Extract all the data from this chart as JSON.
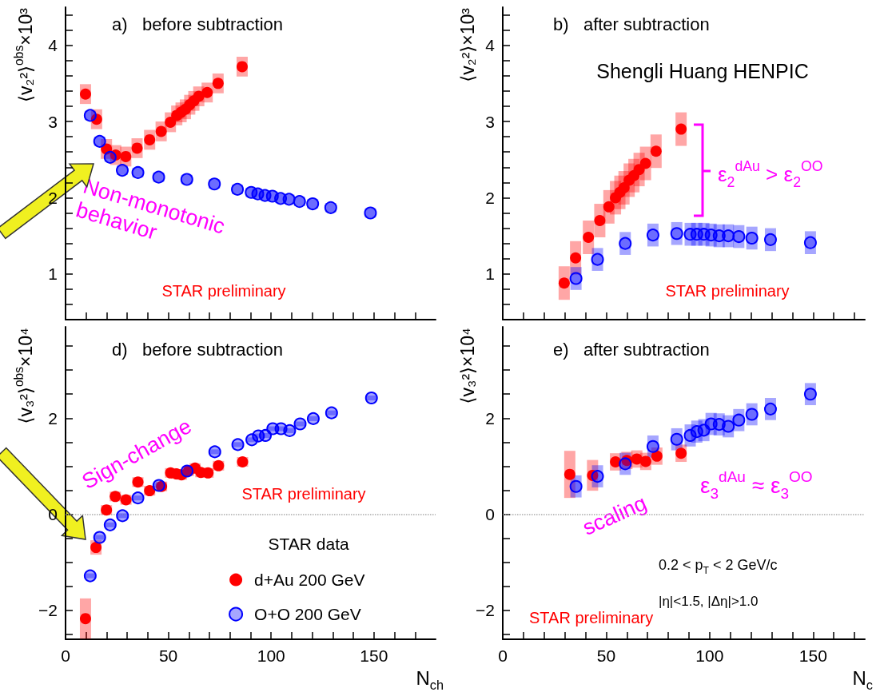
{
  "chart_data": [
    {
      "type": "scatter",
      "title": "a)   before subtraction",
      "ylabel": "⟨v₂²⟩$^{obs}$×10³",
      "xlim": [
        0,
        180
      ],
      "ylim": [
        0.4,
        4.5
      ],
      "tick_labels": "y",
      "marker": "circle",
      "xticks": [
        0,
        {
          "value": 10,
          "label": null
        },
        {
          "value": 20,
          "label": null
        },
        {
          "value": 30,
          "label": null
        },
        {
          "value": 40,
          "label": null
        },
        50,
        {
          "value": 60,
          "label": null
        },
        {
          "value": 70,
          "label": null
        },
        {
          "value": 80,
          "label": null
        },
        {
          "value": 90,
          "label": null
        },
        100,
        {
          "value": 110,
          "label": null
        },
        {
          "value": 120,
          "label": null
        },
        {
          "value": 130,
          "label": null
        },
        {
          "value": 140,
          "label": null
        },
        150,
        {
          "value": 160,
          "label": null
        },
        {
          "value": 170,
          "label": null
        }
      ],
      "yticks": [
        {
          "value": 0.4,
          "label": null
        },
        {
          "value": 0.6,
          "label": null
        },
        {
          "value": 0.8,
          "label": null
        },
        1,
        {
          "value": 1.2,
          "label": null
        },
        {
          "value": 1.4,
          "label": null
        },
        {
          "value": 1.6,
          "label": null
        },
        {
          "value": 1.8,
          "label": null
        },
        2,
        {
          "value": 2.2,
          "label": null
        },
        {
          "value": 2.4,
          "label": null
        },
        {
          "value": 2.6,
          "label": null
        },
        {
          "value": 2.8,
          "label": null
        },
        3,
        {
          "value": 3.2,
          "label": null
        },
        {
          "value": 3.4,
          "label": null
        },
        {
          "value": 3.6,
          "label": null
        },
        {
          "value": 3.8,
          "label": null
        },
        4,
        {
          "value": 4.2,
          "label": null
        },
        {
          "value": 4.4,
          "label": null
        }
      ],
      "annotations": [
        "Non-monotonic behavior",
        "STAR preliminary"
      ],
      "series": [
        {
          "color": "#ff0000",
          "x": [
            9.7,
            15.1,
            19.9,
            24.4,
            29.3,
            34.8,
            40.9,
            46.5,
            51,
            54.1,
            56.2,
            58.3,
            60.4,
            62.4,
            64.8,
            68.9,
            74.2,
            85.9
          ],
          "values": [
            3.36,
            3.03,
            2.64,
            2.56,
            2.54,
            2.65,
            2.76,
            2.87,
            2.99,
            3.08,
            3.12,
            3.16,
            3.22,
            3.27,
            3.33,
            3.38,
            3.5,
            3.72
          ],
          "errors": [
            0.13,
            0.13,
            0.13,
            0.13,
            0.13,
            0.13,
            0.13,
            0.13,
            0.13,
            0.13,
            0.13,
            0.13,
            0.13,
            0.13,
            0.13,
            0.13,
            0.13,
            0.13
          ]
        },
        {
          "color": "#0000ff",
          "x": [
            12,
            16.6,
            21.7,
            27.6,
            35.2,
            45.3,
            59,
            72.4,
            83.6,
            90.3,
            93.5,
            97,
            100.6,
            104.6,
            108.7,
            113.8,
            120.2,
            129,
            148.3
          ],
          "values": [
            3.08,
            2.74,
            2.53,
            2.36,
            2.33,
            2.27,
            2.24,
            2.18,
            2.11,
            2.07,
            2.05,
            2.03,
            2.02,
            1.99,
            1.98,
            1.95,
            1.92,
            1.87,
            1.8
          ],
          "errors": [
            0.06,
            0.06,
            0.06,
            0.06,
            0.06,
            0.06,
            0.06,
            0.06,
            0.06,
            0.06,
            0.06,
            0.06,
            0.06,
            0.06,
            0.06,
            0.06,
            0.06,
            0.06,
            0.06
          ]
        }
      ]
    },
    {
      "type": "scatter",
      "title": "b)   after subtraction",
      "ylabel": "⟨v₂²⟩×10³",
      "xlim": [
        0,
        175
      ],
      "ylim": [
        0.4,
        4.5
      ],
      "tick_labels": "y",
      "marker": "circle",
      "xticks": [
        0,
        {
          "value": 10,
          "label": null
        },
        {
          "value": 20,
          "label": null
        },
        {
          "value": 30,
          "label": null
        },
        {
          "value": 40,
          "label": null
        },
        50,
        {
          "value": 60,
          "label": null
        },
        {
          "value": 70,
          "label": null
        },
        {
          "value": 80,
          "label": null
        },
        {
          "value": 90,
          "label": null
        },
        100,
        {
          "value": 110,
          "label": null
        },
        {
          "value": 120,
          "label": null
        },
        {
          "value": 130,
          "label": null
        },
        {
          "value": 140,
          "label": null
        },
        150,
        {
          "value": 160,
          "label": null
        },
        {
          "value": 170,
          "label": null
        }
      ],
      "yticks": [
        {
          "value": 0.4,
          "label": null
        },
        {
          "value": 0.6,
          "label": null
        },
        {
          "value": 0.8,
          "label": null
        },
        1,
        {
          "value": 1.2,
          "label": null
        },
        {
          "value": 1.4,
          "label": null
        },
        {
          "value": 1.6,
          "label": null
        },
        {
          "value": 1.8,
          "label": null
        },
        2,
        {
          "value": 2.2,
          "label": null
        },
        {
          "value": 2.4,
          "label": null
        },
        {
          "value": 2.6,
          "label": null
        },
        {
          "value": 2.8,
          "label": null
        },
        3,
        {
          "value": 3.2,
          "label": null
        },
        {
          "value": 3.4,
          "label": null
        },
        {
          "value": 3.6,
          "label": null
        },
        {
          "value": 3.8,
          "label": null
        },
        4,
        {
          "value": 4.2,
          "label": null
        },
        {
          "value": 4.4,
          "label": null
        }
      ],
      "annotations": [
        "Shengli Huang HENPIC",
        "ε$_{2}$$^{dAu}$ > ε$_{2}$$^{OO}$",
        "STAR preliminary"
      ],
      "series": [
        {
          "color": "#ff0000",
          "x": [
            29.7,
            35.2,
            41.4,
            46.9,
            51.3,
            54.5,
            56.6,
            58.6,
            61.1,
            63.4,
            65.9,
            69,
            74.1,
            86.2
          ],
          "values": [
            0.88,
            1.21,
            1.48,
            1.7,
            1.88,
            2,
            2.07,
            2.13,
            2.23,
            2.29,
            2.37,
            2.45,
            2.61,
            2.9
          ],
          "errors": [
            0.22,
            0.22,
            0.22,
            0.22,
            0.22,
            0.22,
            0.22,
            0.22,
            0.22,
            0.22,
            0.22,
            0.22,
            0.22,
            0.22
          ]
        },
        {
          "color": "#0000ff",
          "x": [
            35.4,
            45.8,
            59.2,
            72.6,
            84.1,
            90.6,
            93.8,
            97.2,
            100.7,
            104.6,
            109,
            114.1,
            120.4,
            129.4,
            148.7
          ],
          "values": [
            0.94,
            1.19,
            1.4,
            1.51,
            1.53,
            1.52,
            1.52,
            1.52,
            1.51,
            1.5,
            1.5,
            1.49,
            1.47,
            1.45,
            1.41
          ],
          "errors": [
            0.15,
            0.15,
            0.15,
            0.15,
            0.15,
            0.15,
            0.15,
            0.15,
            0.15,
            0.15,
            0.15,
            0.15,
            0.15,
            0.15,
            0.15
          ]
        }
      ]
    },
    {
      "type": "scatter",
      "title": "d)   before subtraction",
      "ylabel": "⟨v₃²⟩$^{obs}$×10⁴",
      "xlabel": "N$_{ch}$",
      "xlim": [
        0,
        180
      ],
      "ylim": [
        -2.6,
        3.9
      ],
      "marker": "circle",
      "legend": "bottom right",
      "legend_title": "STAR data",
      "xticks": [
        0,
        {
          "value": 10,
          "label": null
        },
        {
          "value": 20,
          "label": null
        },
        {
          "value": 30,
          "label": null
        },
        {
          "value": 40,
          "label": null
        },
        50,
        {
          "value": 60,
          "label": null
        },
        {
          "value": 70,
          "label": null
        },
        {
          "value": 80,
          "label": null
        },
        {
          "value": 90,
          "label": null
        },
        100,
        {
          "value": 110,
          "label": null
        },
        {
          "value": 120,
          "label": null
        },
        {
          "value": 130,
          "label": null
        },
        {
          "value": 140,
          "label": null
        },
        150,
        {
          "value": 160,
          "label": null
        },
        {
          "value": 170,
          "label": null
        }
      ],
      "yticks": [
        {
          "value": -2.5,
          "label": null
        },
        {
          "value": -2,
          "label": "−2"
        },
        {
          "value": -1.5,
          "label": null
        },
        {
          "value": -1,
          "label": null
        },
        {
          "value": -0.5,
          "label": null
        },
        0,
        {
          "value": 0.5,
          "label": null
        },
        {
          "value": 1,
          "label": null
        },
        {
          "value": 1.5,
          "label": null
        },
        2,
        {
          "value": 2.5,
          "label": null
        },
        {
          "value": 3,
          "label": null
        },
        {
          "value": 3.5,
          "label": null
        }
      ],
      "ref_lines": [
        {
          "axis": "y",
          "value": 0,
          "line_style": "dotted",
          "color": "#aaaaaa"
        }
      ],
      "annotations": [
        "Sign-change",
        "STAR preliminary"
      ],
      "series": [
        {
          "name": "d+Au 200 GeV",
          "color": "#ff0000",
          "x": [
            9.7,
            14.8,
            19.9,
            24.2,
            29.4,
            35.2,
            40.9,
            46.7,
            51.1,
            54,
            56.4,
            59.8,
            63,
            65.8,
            69.3,
            74.4,
            86.1
          ],
          "values": [
            -2.17,
            -0.69,
            0.09,
            0.37,
            0.3,
            0.67,
            0.49,
            0.58,
            0.86,
            0.84,
            0.82,
            0.9,
            0.96,
            0.87,
            0.86,
            1.01,
            1.09
          ],
          "errors": [
            0.42,
            0.15,
            0.1,
            0.1,
            0.1,
            0.1,
            0.1,
            0.1,
            0.1,
            0.1,
            0.1,
            0.1,
            0.1,
            0.1,
            0.1,
            0.1,
            0.1
          ]
        },
        {
          "name": "O+O 200 GeV",
          "color": "#0000ff",
          "x": [
            12,
            16.6,
            21.7,
            27.7,
            35.2,
            45.4,
            59.1,
            72.6,
            83.8,
            90.6,
            93.8,
            97.2,
            100.8,
            104.8,
            109,
            114.1,
            120.5,
            129.4,
            148.8
          ],
          "values": [
            -1.28,
            -0.48,
            -0.22,
            -0.03,
            0.34,
            0.6,
            0.9,
            1.3,
            1.45,
            1.55,
            1.63,
            1.64,
            1.78,
            1.78,
            1.74,
            1.88,
            1.99,
            2.11,
            2.42
          ],
          "errors": [
            0.05,
            0.05,
            0.05,
            0.05,
            0.05,
            0.05,
            null,
            0.05,
            0.05,
            0.05,
            0.05,
            0.05,
            0.05,
            0.05,
            0.05,
            0.05,
            0.05,
            0.05,
            0.05
          ]
        }
      ]
    },
    {
      "type": "scatter",
      "title": "e)   after subtraction",
      "ylabel": "⟨v₃²⟩×10⁴",
      "xlabel": "N$_{c}$",
      "xlim": [
        0,
        175
      ],
      "ylim": [
        -2.6,
        3.9
      ],
      "marker": "circle",
      "xticks": [
        0,
        {
          "value": 10,
          "label": null
        },
        {
          "value": 20,
          "label": null
        },
        {
          "value": 30,
          "label": null
        },
        {
          "value": 40,
          "label": null
        },
        50,
        {
          "value": 60,
          "label": null
        },
        {
          "value": 70,
          "label": null
        },
        {
          "value": 80,
          "label": null
        },
        {
          "value": 90,
          "label": null
        },
        100,
        {
          "value": 110,
          "label": null
        },
        {
          "value": 120,
          "label": null
        },
        {
          "value": 130,
          "label": null
        },
        {
          "value": 140,
          "label": null
        },
        150,
        {
          "value": 160,
          "label": null
        },
        {
          "value": 170,
          "label": null
        }
      ],
      "yticks": [
        {
          "value": -2.5,
          "label": null
        },
        {
          "value": -2,
          "label": "−2"
        },
        {
          "value": -1.5,
          "label": null
        },
        {
          "value": -1,
          "label": null
        },
        {
          "value": -0.5,
          "label": null
        },
        0,
        {
          "value": 0.5,
          "label": null
        },
        {
          "value": 1,
          "label": null
        },
        {
          "value": 1.5,
          "label": null
        },
        2,
        {
          "value": 2.5,
          "label": null
        },
        {
          "value": 3,
          "label": null
        },
        {
          "value": 3.5,
          "label": null
        }
      ],
      "ref_lines": [
        {
          "axis": "y",
          "value": 0,
          "line_style": "dotted",
          "color": "#aaaaaa"
        }
      ],
      "annotations": [
        "scaling",
        "ε$_{3}$$^{dAu}$ ≈ ε$_{3}$$^{OO}$",
        "0.2 < p$_{T}$ < 2 GeV/c",
        "|η|<1.5, |Δη|>1.0",
        "STAR preliminary"
      ],
      "series": [
        {
          "color": "#ff0000",
          "x": [
            32.4,
            43.4,
            54.5,
            60,
            64.8,
            69.1,
            74.5,
            86.2
          ],
          "values": [
            0.83,
            0.81,
            1.09,
            1.12,
            1.15,
            1.1,
            1.21,
            1.27
          ],
          "errors": [
            0.49,
            0.32,
            0.18,
            0.18,
            0.18,
            0.18,
            0.18,
            0.18
          ]
        },
        {
          "color": "#0000ff",
          "x": [
            35.4,
            45.8,
            59.2,
            72.6,
            84.1,
            90.6,
            93.8,
            97.2,
            100.7,
            104.6,
            109,
            114.1,
            120.4,
            129.4,
            148.7
          ],
          "values": [
            0.58,
            0.79,
            1.05,
            1.41,
            1.56,
            1.64,
            1.72,
            1.75,
            1.88,
            1.87,
            1.83,
            1.96,
            2.08,
            2.19,
            2.5
          ],
          "errors": [
            0.23,
            0.23,
            0.23,
            0.23,
            0.23,
            0.23,
            0.23,
            0.23,
            0.23,
            0.23,
            0.23,
            0.23,
            0.23,
            0.23,
            0.23
          ]
        }
      ]
    }
  ]
}
